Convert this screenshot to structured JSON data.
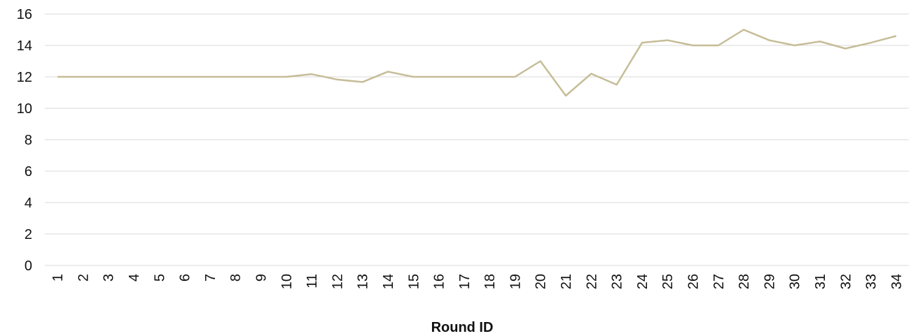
{
  "chart_data": {
    "type": "line",
    "title": "",
    "xlabel": "Round ID",
    "ylabel": "",
    "ylim": [
      0,
      16
    ],
    "yticks": [
      0,
      2,
      4,
      6,
      8,
      10,
      12,
      14,
      16
    ],
    "grid": true,
    "legend": "none",
    "categories": [
      "1",
      "2",
      "3",
      "4",
      "5",
      "6",
      "7",
      "8",
      "9",
      "10",
      "11",
      "12",
      "13",
      "14",
      "15",
      "16",
      "17",
      "18",
      "19",
      "20",
      "21",
      "22",
      "23",
      "24",
      "25",
      "26",
      "27",
      "28",
      "29",
      "30",
      "31",
      "32",
      "33",
      "34"
    ],
    "series": [
      {
        "color": "#c6bd97",
        "values": [
          12,
          12,
          12,
          12,
          12,
          12,
          12,
          12,
          12,
          12,
          12.17,
          11.83,
          11.67,
          12.33,
          12,
          12,
          12,
          12,
          12,
          13,
          10.8,
          12.2,
          11.5,
          14.17,
          14.33,
          14,
          14,
          15,
          14.33,
          14,
          14.25,
          13.8,
          14.17,
          14.6
        ]
      }
    ]
  }
}
